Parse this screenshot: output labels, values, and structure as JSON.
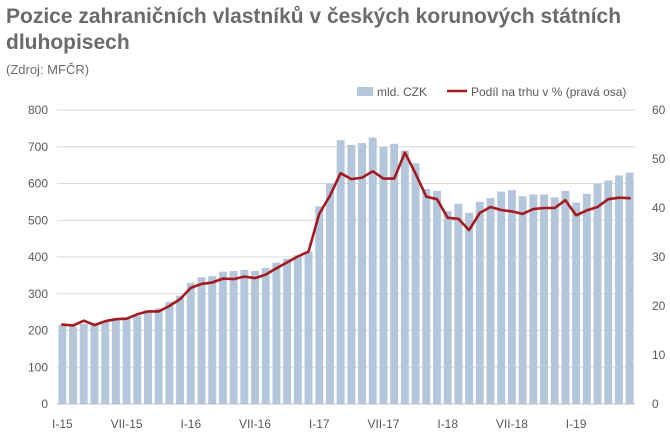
{
  "title": "Pozice zahraničních vlastníků v českých korunových státních dluhopisech",
  "source": "(Zdroj: MFČR)",
  "colors": {
    "bars": "#b4c6dc",
    "line": "#a31a1f",
    "grid": "#d9d9d9",
    "text": "#595959"
  },
  "chart_data": {
    "type": "bar",
    "title": "Pozice zahraničních vlastníků v českých korunových státních dluhopisech",
    "x_tick_labels": [
      "I-15",
      "VII-15",
      "I-16",
      "VII-16",
      "I-17",
      "VII-17",
      "I-18",
      "VII-18",
      "I-19"
    ],
    "legend_position": "top-right",
    "grid": true,
    "ylim": [
      0,
      800
    ],
    "yticks": [
      "0",
      "100",
      "200",
      "300",
      "400",
      "500",
      "600",
      "700",
      "800"
    ],
    "y2lim": [
      0,
      60
    ],
    "y2ticks": [
      "0",
      "10",
      "20",
      "30",
      "40",
      "50",
      "60"
    ],
    "series": [
      {
        "name": "mld. CZK",
        "type": "bar",
        "axis": "left",
        "values": [
          215,
          210,
          218,
          220,
          225,
          228,
          232,
          240,
          255,
          260,
          278,
          295,
          330,
          345,
          348,
          360,
          362,
          365,
          362,
          370,
          385,
          395,
          405,
          415,
          538,
          600,
          718,
          705,
          710,
          725,
          700,
          708,
          690,
          655,
          585,
          580,
          525,
          545,
          520,
          550,
          560,
          578,
          582,
          565,
          570,
          570,
          562,
          580,
          548,
          572,
          600,
          608,
          622,
          630
        ]
      },
      {
        "name": "Podíl na trhu v % (pravá osa)",
        "type": "line",
        "axis": "right",
        "values": [
          16.2,
          16.0,
          17.0,
          16.1,
          16.9,
          17.3,
          17.4,
          18.3,
          18.9,
          18.9,
          20.0,
          21.4,
          23.7,
          24.5,
          24.8,
          25.6,
          25.5,
          26.0,
          25.7,
          26.4,
          27.7,
          28.9,
          30.1,
          31.1,
          38.8,
          42.5,
          47.1,
          45.9,
          46.2,
          47.5,
          46.0,
          46.0,
          51.3,
          47.0,
          42.3,
          41.8,
          38.0,
          37.8,
          35.5,
          39.0,
          40.2,
          39.6,
          39.3,
          38.8,
          39.8,
          40.0,
          40.0,
          41.6,
          38.5,
          39.5,
          40.2,
          41.8,
          42.1,
          42.0
        ]
      }
    ]
  }
}
